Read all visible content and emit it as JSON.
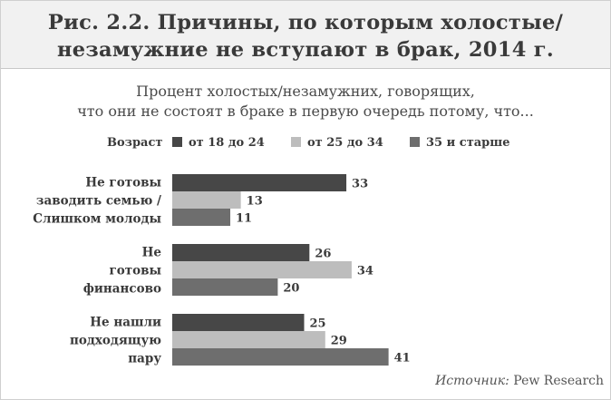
{
  "header": {
    "title_line1": "Рис. 2.2. Причины, по которым холостые/",
    "title_line2": "незамужние не вступают в брак, 2014 г."
  },
  "subtitle_line1": "Процент холостых/незамужних, говорящих,",
  "subtitle_line2": "что они не состоят в браке в первую очередь потому, что...",
  "source": {
    "label": "Источник:",
    "name": "Pew Research"
  },
  "chart_data": {
    "type": "bar",
    "orientation": "horizontal",
    "legend_title": "Возраст",
    "legend_placement": "top",
    "categories": [
      [
        "Не готовы",
        "заводить семью /",
        "Слишком молоды"
      ],
      [
        "Не",
        "готовы",
        "финансово"
      ],
      [
        "Не нашли",
        "подходящую",
        "пару"
      ]
    ],
    "series": [
      {
        "name": "от 18 до 24",
        "color": "#474747",
        "values": [
          33,
          26,
          25
        ]
      },
      {
        "name": "от 25 до 34",
        "color": "#bdbdbd",
        "values": [
          13,
          34,
          29
        ]
      },
      {
        "name": "35 и старше",
        "color": "#6e6e6e",
        "values": [
          11,
          20,
          41
        ]
      }
    ],
    "xlim": [
      0,
      41
    ],
    "grid": false
  }
}
